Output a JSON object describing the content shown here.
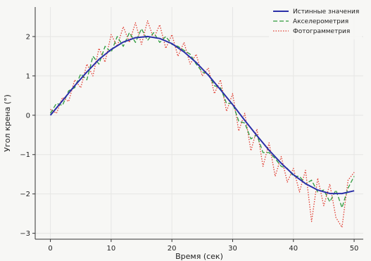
{
  "chart_data": {
    "type": "line",
    "title": "",
    "xlabel": "Время (сек)",
    "ylabel": "Угол крена (°)",
    "xlim": [
      -2.5,
      51.5
    ],
    "ylim": [
      -3.15,
      2.75
    ],
    "x_ticks": [
      0,
      10,
      20,
      30,
      40,
      50
    ],
    "y_ticks": [
      -3,
      -2,
      -1,
      0,
      1,
      2
    ],
    "grid": true,
    "legend_position": "top-right",
    "series": [
      {
        "name": "Истинные значения",
        "color": "#2b2fa8",
        "style": "solid",
        "x": [
          0,
          2,
          4,
          6,
          8,
          10,
          12,
          14,
          16,
          18,
          20,
          22,
          24,
          26,
          28,
          30,
          32,
          34,
          36,
          38,
          40,
          42,
          44,
          46,
          48,
          50
        ],
        "y": [
          0.0,
          0.37,
          0.75,
          1.1,
          1.42,
          1.67,
          1.86,
          1.97,
          2.0,
          1.95,
          1.82,
          1.61,
          1.34,
          1.02,
          0.65,
          0.27,
          -0.13,
          -0.52,
          -0.89,
          -1.22,
          -1.51,
          -1.74,
          -1.9,
          -1.99,
          -1.99,
          -1.92
        ]
      },
      {
        "name": "Акселерометрия",
        "color": "#2e9a3c",
        "style": "dashed",
        "x": [
          0,
          1,
          2,
          3,
          4,
          5,
          6,
          7,
          8,
          9,
          10,
          11,
          12,
          13,
          14,
          15,
          16,
          17,
          18,
          19,
          20,
          21,
          22,
          23,
          24,
          25,
          26,
          27,
          28,
          29,
          30,
          31,
          32,
          33,
          34,
          35,
          36,
          37,
          38,
          39,
          40,
          41,
          42,
          43,
          44,
          45,
          46,
          47,
          48,
          49,
          50
        ],
        "y": [
          0.05,
          0.3,
          0.25,
          0.62,
          0.7,
          1.05,
          0.9,
          1.5,
          1.3,
          1.75,
          1.6,
          2.0,
          1.75,
          2.1,
          1.85,
          2.2,
          1.9,
          2.1,
          1.85,
          2.0,
          1.8,
          1.75,
          1.65,
          1.55,
          1.3,
          1.1,
          1.05,
          0.75,
          0.7,
          0.3,
          0.3,
          -0.15,
          -0.2,
          -0.6,
          -0.5,
          -0.95,
          -0.95,
          -1.1,
          -1.3,
          -1.35,
          -1.55,
          -1.55,
          -1.75,
          -1.65,
          -1.95,
          -1.9,
          -2.2,
          -1.9,
          -2.35,
          -1.85,
          -1.55
        ]
      },
      {
        "name": "Фотограмметрия",
        "color": "#e03a2e",
        "style": "dotted",
        "x": [
          0,
          1,
          2,
          3,
          4,
          5,
          6,
          7,
          8,
          9,
          10,
          11,
          12,
          13,
          14,
          15,
          16,
          17,
          18,
          19,
          20,
          21,
          22,
          23,
          24,
          25,
          26,
          27,
          28,
          29,
          30,
          31,
          32,
          33,
          34,
          35,
          36,
          37,
          38,
          39,
          40,
          41,
          42,
          43,
          44,
          45,
          46,
          47,
          48,
          49,
          50
        ],
        "y": [
          0.15,
          0.05,
          0.45,
          0.35,
          0.9,
          0.7,
          1.3,
          1.0,
          1.7,
          1.35,
          2.05,
          1.75,
          2.25,
          1.85,
          2.35,
          1.8,
          2.4,
          1.95,
          2.3,
          1.7,
          2.05,
          1.5,
          1.85,
          1.3,
          1.55,
          1.0,
          1.2,
          0.55,
          0.9,
          0.1,
          0.55,
          -0.4,
          0.05,
          -0.9,
          -0.35,
          -1.3,
          -0.7,
          -1.55,
          -1.05,
          -1.7,
          -1.35,
          -1.95,
          -1.4,
          -2.7,
          -1.6,
          -2.3,
          -1.75,
          -2.6,
          -2.85,
          -1.65,
          -1.45
        ]
      }
    ]
  }
}
